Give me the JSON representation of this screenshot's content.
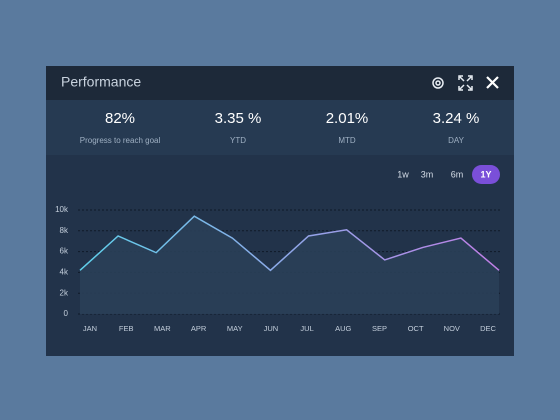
{
  "header": {
    "title": "Performance"
  },
  "stats": [
    {
      "value": "82%",
      "label": "Progress to reach goal"
    },
    {
      "value": "3.35 %",
      "label": "YTD"
    },
    {
      "value": "2.01%",
      "label": "MTD"
    },
    {
      "value": "3.24 %",
      "label": "DAY"
    }
  ],
  "ranges": [
    "1w",
    "3m",
    "6m",
    "1Y"
  ],
  "active_range": 3,
  "chart_data": {
    "type": "line",
    "categories": [
      "JAN",
      "FEB",
      "MAR",
      "APR",
      "MAY",
      "JUN",
      "JUL",
      "AUG",
      "SEP",
      "OCT",
      "NOV",
      "DEC"
    ],
    "values": [
      4200,
      7500,
      5900,
      9400,
      7300,
      4200,
      7500,
      8100,
      5200,
      6400,
      7300,
      4200
    ],
    "gradient": [
      "#5fd0ea",
      "#c07ee6"
    ],
    "ylim": [
      0,
      10000
    ],
    "yticks": [
      0,
      {
        "value": 2000,
        "label": "2k"
      },
      {
        "value": 4000,
        "label": "4k"
      },
      {
        "value": 6000,
        "label": "6k"
      },
      {
        "value": 8000,
        "label": "8k"
      },
      {
        "value": 10000,
        "label": "10k"
      }
    ],
    "grid": true
  }
}
